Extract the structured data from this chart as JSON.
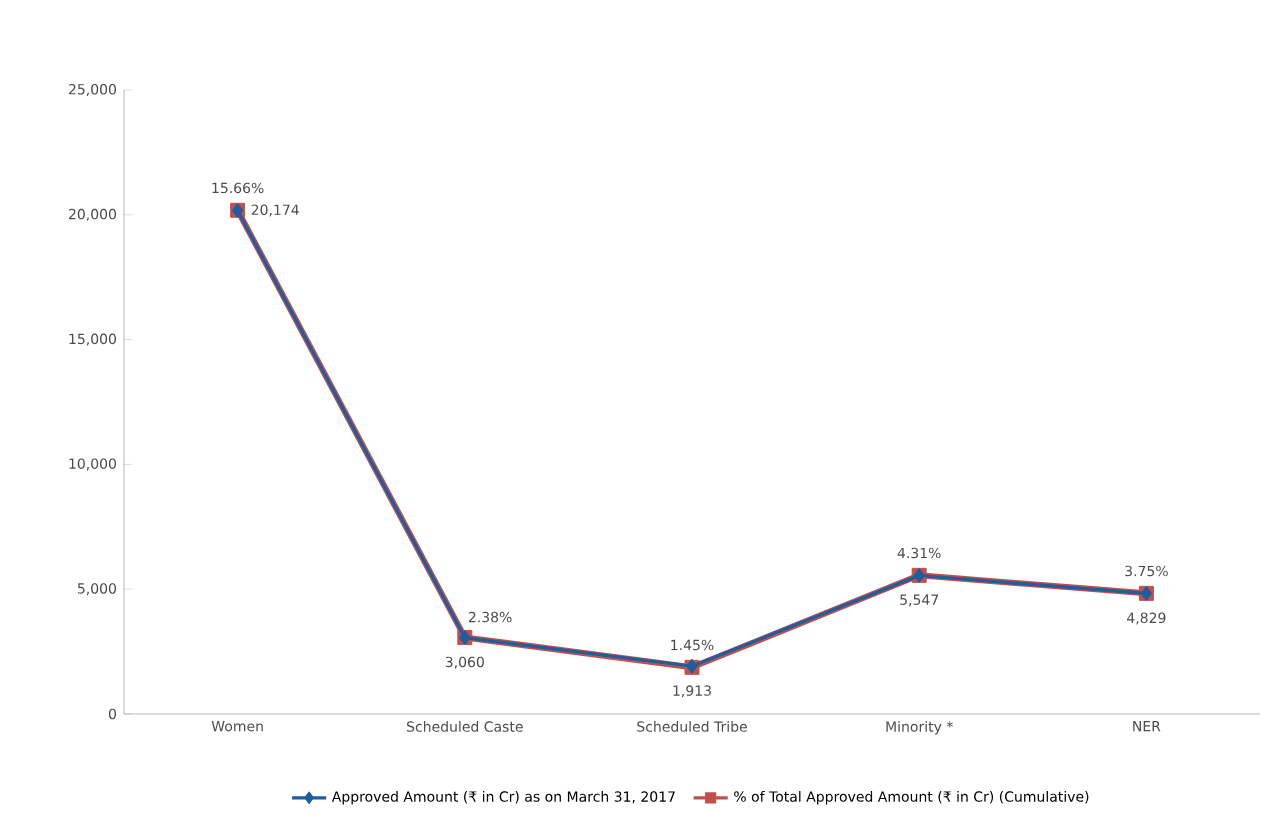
{
  "chart_data": {
    "type": "line",
    "categories": [
      "Women",
      "Scheduled Caste",
      "Scheduled Tribe",
      "Minority *",
      "NER"
    ],
    "series": [
      {
        "name": "Approved Amount (₹ in Cr) as on March 31, 2017",
        "color": "#1f5d9c",
        "values": [
          20174,
          3060,
          1913,
          5547,
          4829
        ],
        "marker": "diamond",
        "value_labels": [
          "20,174",
          "3,060",
          "1,913",
          "5,547",
          "4,829"
        ]
      },
      {
        "name": "% of Total Approved Amount (₹ in Cr) (Cumulative)",
        "color": "#c0504d",
        "values": [
          15.66,
          2.38,
          1.45,
          4.31,
          3.75
        ],
        "axis": "y2",
        "marker": "square",
        "value_labels": [
          "15.66%",
          "2.38%",
          "1.45%",
          "4.31%",
          "3.75%"
        ]
      }
    ],
    "ylim": [
      0,
      25000
    ],
    "yticks": [
      {
        "value": 0,
        "label": "0"
      },
      {
        "value": 5000,
        "label": "5,000"
      },
      {
        "value": 10000,
        "label": "10,000"
      },
      {
        "value": 15000,
        "label": "15,000"
      },
      {
        "value": 20000,
        "label": "20,000"
      },
      {
        "value": 25000,
        "label": "25,000"
      }
    ],
    "y2lim": [
      0,
      19.4
    ],
    "tick_labels": "y",
    "legend": "bottom",
    "grid": false
  }
}
